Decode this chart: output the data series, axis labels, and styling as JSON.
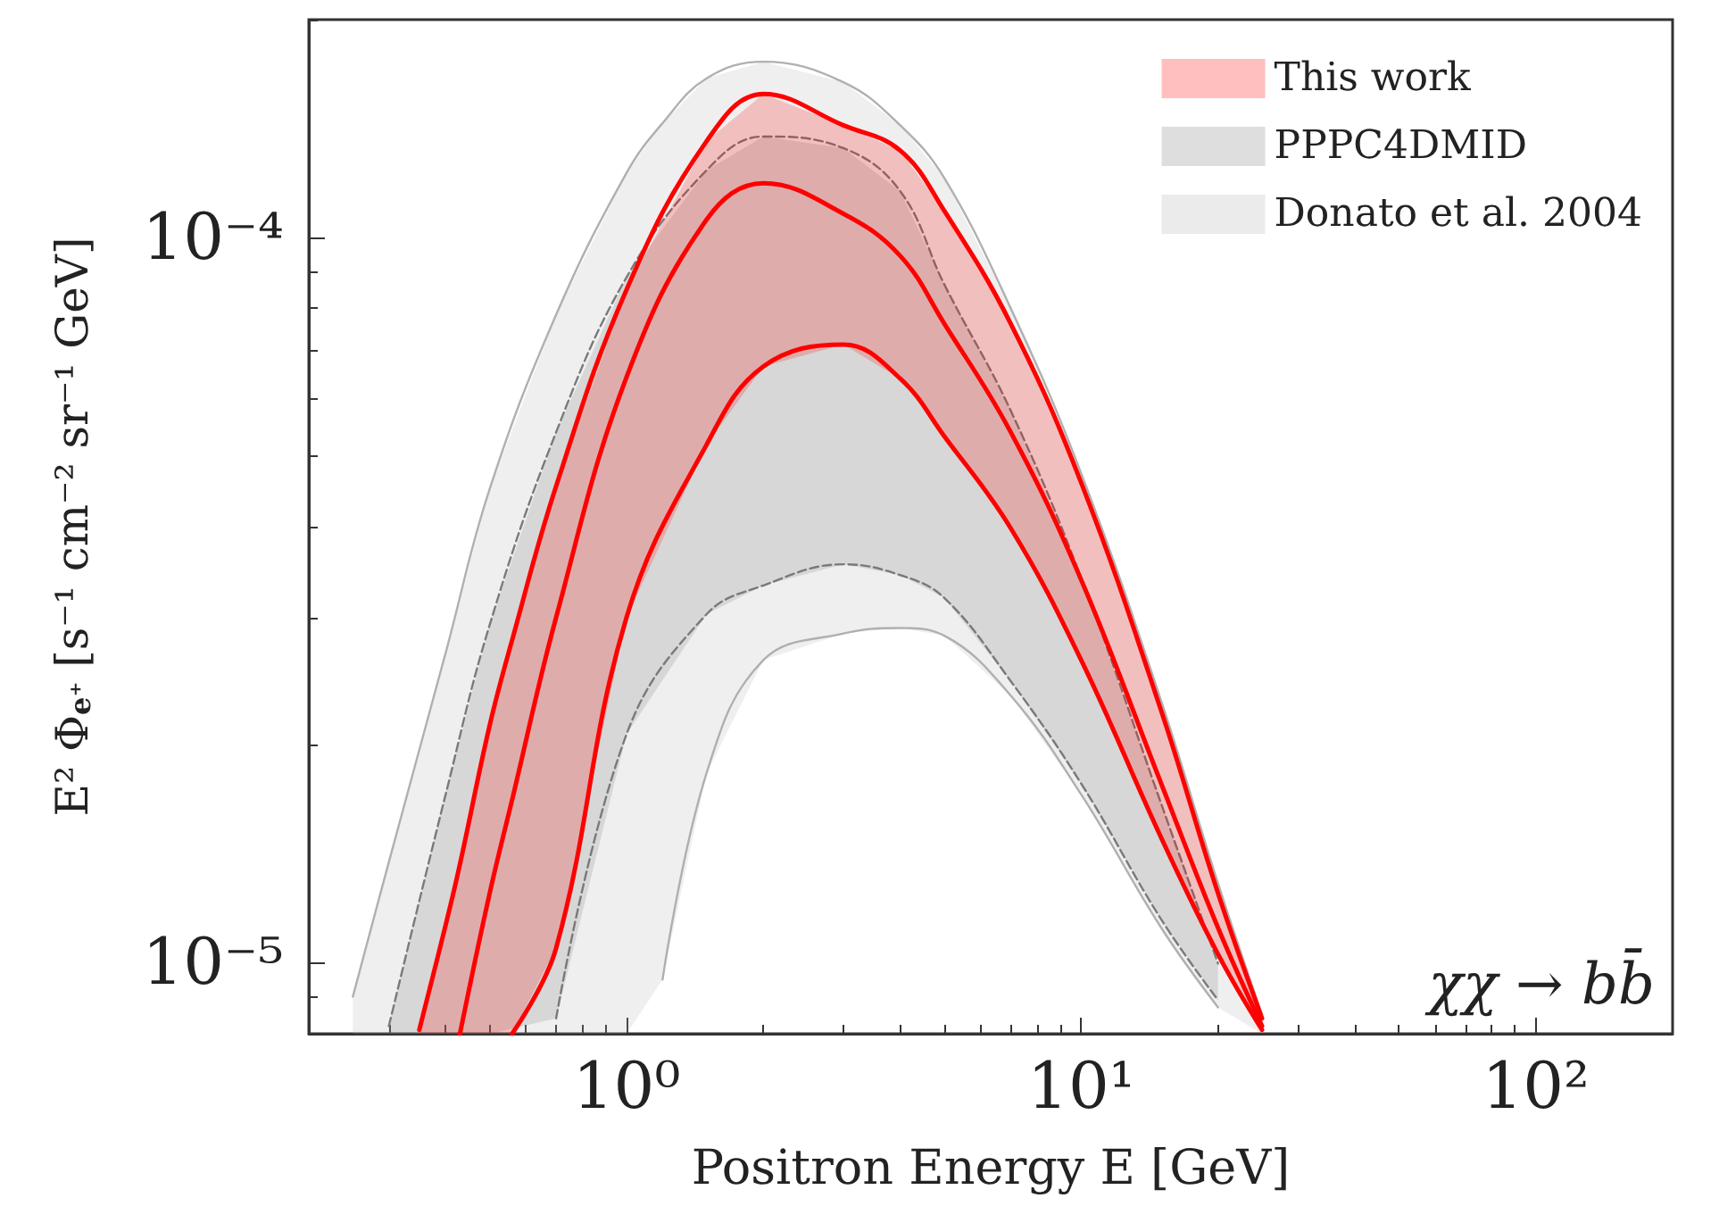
{
  "chart_data": {
    "type": "line",
    "xlabel": "Positron Energy E [GeV]",
    "ylabel": "E² Φ$_{e⁺}$ [s⁻¹ cm⁻² sr⁻¹ GeV]",
    "log": "xy",
    "xlim": [
      0.2,
      200
    ],
    "ylim": [
      8e-06,
      0.0002
    ],
    "xticks": [
      {
        "value": 1,
        "label": "10⁰"
      },
      {
        "value": 10,
        "label": "10¹"
      },
      {
        "value": 100,
        "label": "10²"
      }
    ],
    "yticks": [
      {
        "value": 1e-05,
        "label": "10⁻⁵"
      },
      {
        "value": 0.0001,
        "label": "10⁻⁴"
      }
    ],
    "legend": "top right",
    "annotations": [
      "χχ → bb̄"
    ],
    "series": [
      {
        "name": "This work",
        "color": "#ff0000",
        "x": [
          0.35,
          0.4,
          0.43,
          0.5,
          0.56,
          0.7,
          1,
          1.5,
          2,
          3,
          4,
          5,
          7,
          10,
          15,
          20,
          25
        ],
        "values": [
          null,
          null,
          8e-06,
          1.25e-05,
          1.68e-05,
          3e-05,
          6.43e-05,
          0.000106,
          0.000119,
          0.000108,
          9.45e-05,
          7.62e-05,
          5.4e-05,
          3.38e-05,
          1.77e-05,
          1.12e-05,
          8.2e-06
        ],
        "upper": [
          8.1e-06,
          1.13e-05,
          1.37e-05,
          2.13e-05,
          2.79e-05,
          4.55e-05,
          8.49e-05,
          0.000136,
          0.000158,
          0.000143,
          0.000132,
          0.000109,
          7.62e-05,
          4.6e-05,
          2.23e-05,
          1.25e-05,
          8.4e-06
        ],
        "lower": [
          8e-06,
          8e-06,
          8e-06,
          8e-06,
          8e-06,
          1.05e-05,
          3e-05,
          5.19e-05,
          6.65e-05,
          7.13e-05,
          6.4e-05,
          5.33e-05,
          3.98e-05,
          2.62e-05,
          1.49e-05,
          1.03e-05,
          8.1e-06
        ]
      },
      {
        "color": "#ff0000",
        "x": [
          0.35,
          0.4,
          0.43,
          0.5,
          0.56,
          0.7,
          1,
          1.5,
          2,
          3,
          4,
          5,
          7,
          10,
          15,
          20,
          25
        ],
        "values": [
          8.1e-06,
          1.13e-05,
          1.37e-05,
          2.13e-05,
          2.79e-05,
          4.55e-05,
          8.49e-05,
          0.000136,
          0.000158,
          0.000143,
          0.000132,
          0.000109,
          7.62e-05,
          4.6e-05,
          2.23e-05,
          1.25e-05,
          8.4e-06
        ]
      },
      {
        "color": "#ff0000",
        "x": [
          0.56,
          0.7,
          1,
          1.5,
          2,
          3,
          4,
          5,
          7,
          10,
          15,
          20,
          25
        ],
        "values": [
          8e-06,
          1.05e-05,
          3e-05,
          5.19e-05,
          6.65e-05,
          7.13e-05,
          6.4e-05,
          5.33e-05,
          3.98e-05,
          2.62e-05,
          1.49e-05,
          1.03e-05,
          8.1e-06
        ]
      },
      {
        "name": "PPPC4DMID",
        "color": "#7a7a7a",
        "line_style": "dashed",
        "x": [
          0.3,
          0.4,
          0.5,
          0.7,
          1,
          1.5,
          2,
          3,
          4,
          5,
          7,
          10,
          15,
          20
        ],
        "values": [
          8.2e-06,
          1.71e-05,
          2.93e-05,
          5.4e-05,
          8.83e-05,
          0.000124,
          0.000138,
          0.000133,
          0.000116,
          8.63e-05,
          5.78e-05,
          3.4e-05,
          1.66e-05,
          1e-05
        ],
        "upper": [
          8.2e-06,
          1.71e-05,
          2.93e-05,
          5.4e-05,
          8.83e-05,
          0.000124,
          0.000138,
          0.000133,
          0.000116,
          8.63e-05,
          5.78e-05,
          3.4e-05,
          1.66e-05,
          1e-05
        ],
        "lower": [
          8e-06,
          8e-06,
          8e-06,
          8.4e-06,
          2.07e-05,
          3.03e-05,
          3.32e-05,
          3.55e-05,
          3.43e-05,
          3.19e-05,
          2.45e-05,
          1.77e-05,
          1.15e-05,
          8.9e-06
        ]
      },
      {
        "color": "#7a7a7a",
        "line_style": "dashed",
        "x": [
          0.7,
          1,
          1.5,
          2,
          3,
          4,
          5,
          7,
          10,
          15,
          20
        ],
        "values": [
          8.4e-06,
          2.07e-05,
          3.03e-05,
          3.32e-05,
          3.55e-05,
          3.43e-05,
          3.19e-05,
          2.45e-05,
          1.77e-05,
          1.15e-05,
          8.9e-06
        ]
      },
      {
        "name": "Donato et al. 2004",
        "color": "#b0b0b0",
        "x": [
          0.25,
          0.3,
          0.4,
          0.5,
          0.7,
          1,
          1.2,
          1.5,
          2,
          3,
          4,
          5,
          7,
          10,
          15,
          20,
          25
        ],
        "values": [
          9e-06,
          1.38e-05,
          2.68e-05,
          4.51e-05,
          7.84e-05,
          0.000123,
          0.000144,
          0.000166,
          0.000175,
          0.000164,
          0.000143,
          0.000121,
          8e-05,
          4.74e-05,
          2.3e-05,
          1.29e-05,
          8.5e-06
        ],
        "upper": [
          9e-06,
          1.38e-05,
          2.68e-05,
          4.51e-05,
          7.84e-05,
          0.000123,
          0.000144,
          0.000166,
          0.000175,
          0.000164,
          0.000143,
          0.000121,
          8e-05,
          4.74e-05,
          2.3e-05,
          1.29e-05,
          8.5e-06
        ],
        "lower": [
          8e-06,
          8e-06,
          8e-06,
          8e-06,
          8e-06,
          8e-06,
          9.5e-06,
          1.83e-05,
          2.62e-05,
          2.85e-05,
          2.9e-05,
          2.83e-05,
          2.34e-05,
          1.71e-05,
          1.12e-05,
          8.7e-06,
          8e-06
        ]
      },
      {
        "color": "#b0b0b0",
        "x": [
          1.2,
          1.5,
          2,
          3,
          4,
          5,
          7,
          10,
          15,
          20
        ],
        "values": [
          9.5e-06,
          1.83e-05,
          2.62e-05,
          2.85e-05,
          2.9e-05,
          2.83e-05,
          2.34e-05,
          1.71e-05,
          1.12e-05,
          8.7e-06
        ]
      }
    ]
  }
}
